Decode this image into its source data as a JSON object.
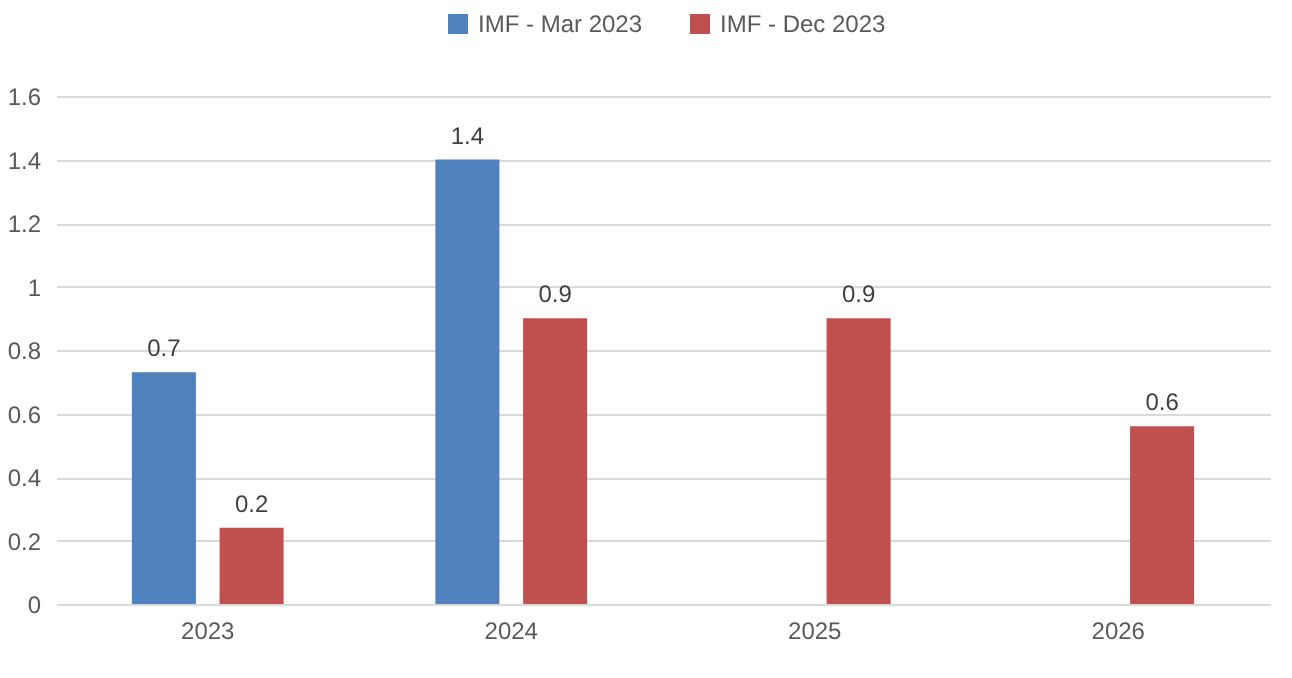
{
  "chart_data": {
    "type": "bar",
    "categories": [
      "2023",
      "2024",
      "2025",
      "2026"
    ],
    "series": [
      {
        "name": "IMF - Mar 2023",
        "color": "#4f81bd",
        "values": [
          0.73,
          1.4,
          null,
          null
        ],
        "value_labels": [
          "0.7",
          "1.4",
          null,
          null
        ]
      },
      {
        "name": "IMF - Dec 2023",
        "color": "#c0504d",
        "values": [
          0.24,
          0.9,
          0.9,
          0.56
        ],
        "value_labels": [
          "0.2",
          "0.9",
          "0.9",
          "0.6"
        ]
      }
    ],
    "ylim": [
      0,
      1.6
    ],
    "yticks": [
      0,
      0.2,
      0.4,
      0.6,
      0.8,
      1,
      1.2,
      1.4,
      1.6
    ],
    "grid": "y",
    "legend": "top"
  }
}
